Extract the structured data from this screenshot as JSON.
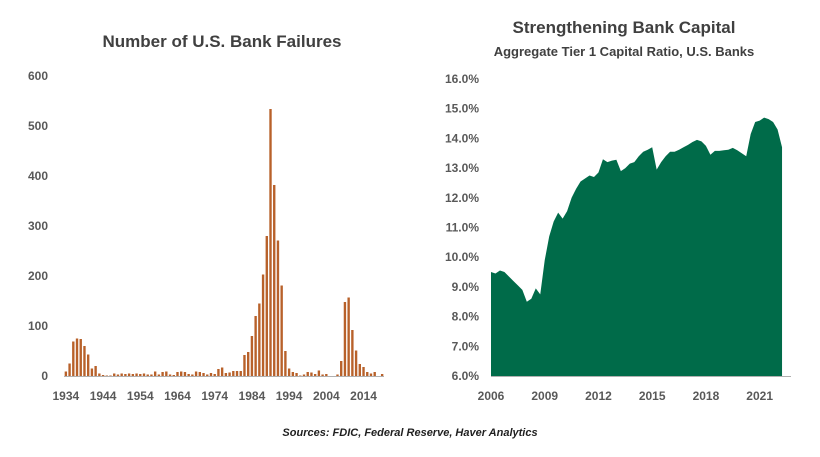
{
  "chart_data": [
    {
      "type": "bar",
      "title": "Number of U.S. Bank Failures",
      "xlabel": "",
      "ylabel": "",
      "ylim": [
        0,
        600
      ],
      "yticks": [
        "0",
        "100",
        "200",
        "300",
        "400",
        "500",
        "600"
      ],
      "xticks": [
        "1934",
        "1944",
        "1954",
        "1964",
        "1974",
        "1984",
        "1994",
        "2004",
        "2014"
      ],
      "grid": false,
      "color": "#B8612A",
      "x": [
        1934,
        1935,
        1936,
        1937,
        1938,
        1939,
        1940,
        1941,
        1942,
        1943,
        1944,
        1945,
        1946,
        1947,
        1948,
        1949,
        1950,
        1951,
        1952,
        1953,
        1954,
        1955,
        1956,
        1957,
        1958,
        1959,
        1960,
        1961,
        1962,
        1963,
        1964,
        1965,
        1966,
        1967,
        1968,
        1969,
        1970,
        1971,
        1972,
        1973,
        1974,
        1975,
        1976,
        1977,
        1978,
        1979,
        1980,
        1981,
        1982,
        1983,
        1984,
        1985,
        1986,
        1987,
        1988,
        1989,
        1990,
        1991,
        1992,
        1993,
        1994,
        1995,
        1996,
        1997,
        1998,
        1999,
        2000,
        2001,
        2002,
        2003,
        2004,
        2005,
        2006,
        2007,
        2008,
        2009,
        2010,
        2011,
        2012,
        2013,
        2014,
        2015,
        2016,
        2017,
        2018,
        2019
      ],
      "values": [
        9,
        25,
        69,
        75,
        74,
        60,
        43,
        15,
        20,
        5,
        2,
        1,
        1,
        5,
        3,
        5,
        4,
        5,
        4,
        5,
        4,
        5,
        3,
        3,
        9,
        3,
        8,
        9,
        3,
        2,
        8,
        9,
        8,
        4,
        3,
        9,
        8,
        6,
        3,
        6,
        4,
        14,
        17,
        6,
        7,
        10,
        10,
        10,
        42,
        48,
        80,
        120,
        145,
        203,
        280,
        534,
        382,
        271,
        181,
        50,
        15,
        8,
        6,
        1,
        3,
        8,
        7,
        4,
        11,
        3,
        4,
        0,
        0,
        3,
        30,
        148,
        157,
        92,
        51,
        24,
        18,
        8,
        5,
        8,
        0,
        4
      ]
    },
    {
      "type": "area",
      "title": "Strengthening  Bank Capital",
      "subtitle": "Aggregate Tier 1 Capital Ratio, U.S. Banks",
      "xlabel": "",
      "ylabel": "",
      "ylim": [
        6.0,
        16.0
      ],
      "xlim": [
        2006,
        2022.75
      ],
      "yticks": [
        "6.0%",
        "7.0%",
        "8.0%",
        "9.0%",
        "10.0%",
        "11.0%",
        "12.0%",
        "13.0%",
        "14.0%",
        "15.0%",
        "16.0%"
      ],
      "xticks": [
        "2006",
        "2009",
        "2012",
        "2015",
        "2018",
        "2021"
      ],
      "grid": false,
      "color": "#006B49",
      "x": [
        2006,
        2006.25,
        2006.5,
        2006.75,
        2007,
        2007.25,
        2007.5,
        2007.75,
        2008,
        2008.25,
        2008.5,
        2008.75,
        2009,
        2009.25,
        2009.5,
        2009.75,
        2010,
        2010.25,
        2010.5,
        2010.75,
        2011,
        2011.25,
        2011.5,
        2011.75,
        2012,
        2012.25,
        2012.5,
        2012.75,
        2013,
        2013.25,
        2013.5,
        2013.75,
        2014,
        2014.25,
        2014.5,
        2014.75,
        2015,
        2015.25,
        2015.5,
        2015.75,
        2016,
        2016.25,
        2016.5,
        2016.75,
        2017,
        2017.25,
        2017.5,
        2017.75,
        2018,
        2018.25,
        2018.5,
        2018.75,
        2019,
        2019.25,
        2019.5,
        2019.75,
        2020,
        2020.25,
        2020.5,
        2020.75,
        2021,
        2021.25,
        2021.5,
        2021.75,
        2022,
        2022.25,
        2022.5,
        2022.75
      ],
      "values": [
        9.5,
        9.45,
        9.55,
        9.5,
        9.35,
        9.2,
        9.05,
        8.9,
        8.5,
        8.6,
        8.95,
        8.75,
        9.9,
        10.7,
        11.2,
        11.5,
        11.3,
        11.55,
        12.0,
        12.3,
        12.55,
        12.65,
        12.75,
        12.7,
        12.85,
        13.3,
        13.2,
        13.25,
        13.28,
        12.9,
        13.0,
        13.15,
        13.2,
        13.4,
        13.55,
        13.62,
        13.7,
        12.95,
        13.2,
        13.4,
        13.55,
        13.55,
        13.62,
        13.7,
        13.78,
        13.88,
        13.95,
        13.9,
        13.75,
        13.45,
        13.58,
        13.58,
        13.6,
        13.62,
        13.68,
        13.6,
        13.5,
        13.4,
        14.15,
        14.55,
        14.6,
        14.7,
        14.65,
        14.55,
        14.3,
        13.7,
        null,
        null
      ]
    }
  ],
  "footer": {
    "source": "Sources: FDIC, Federal Reserve,  Haver Analytics"
  }
}
